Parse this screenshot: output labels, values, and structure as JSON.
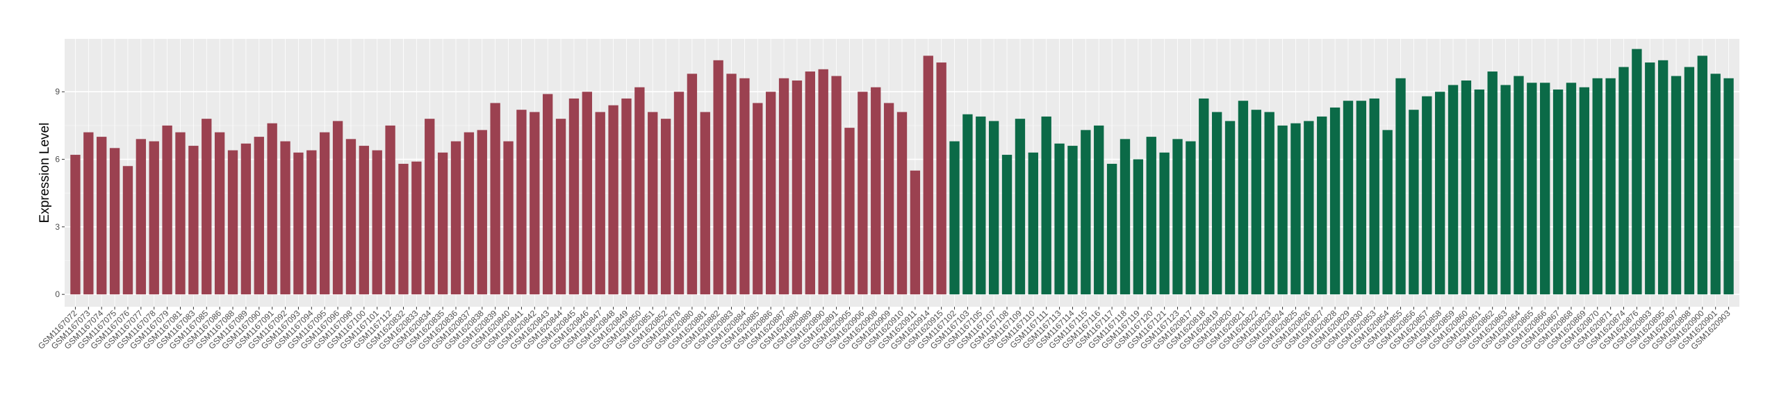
{
  "chart_data": {
    "type": "bar",
    "ylabel": "Expression Level",
    "categories": [
      "GSM1167072",
      "GSM1167073",
      "GSM1167074",
      "GSM1167075",
      "GSM1167076",
      "GSM1167077",
      "GSM1167078",
      "GSM1167079",
      "GSM1167081",
      "GSM1167083",
      "GSM1167085",
      "GSM1167086",
      "GSM1167088",
      "GSM1167089",
      "GSM1167090",
      "GSM1167091",
      "GSM1167092",
      "GSM1167093",
      "GSM1167094",
      "GSM1167095",
      "GSM1167096",
      "GSM1167098",
      "GSM1167100",
      "GSM1167101",
      "GSM1167112",
      "GSM1620832",
      "GSM1620833",
      "GSM1620834",
      "GSM1620835",
      "GSM1620836",
      "GSM1620837",
      "GSM1620838",
      "GSM1620839",
      "GSM1620840",
      "GSM1620841",
      "GSM1620842",
      "GSM1620843",
      "GSM1620844",
      "GSM1620845",
      "GSM1620846",
      "GSM1620847",
      "GSM1620848",
      "GSM1620849",
      "GSM1620850",
      "GSM1620851",
      "GSM1620852",
      "GSM1620878",
      "GSM1620880",
      "GSM1620881",
      "GSM1620882",
      "GSM1620883",
      "GSM1620884",
      "GSM1620885",
      "GSM1620886",
      "GSM1620887",
      "GSM1620888",
      "GSM1620889",
      "GSM1620890",
      "GSM1620891",
      "GSM1620905",
      "GSM1620906",
      "GSM1620908",
      "GSM1620909",
      "GSM1620910",
      "GSM1620911",
      "GSM1620914",
      "GSM1620915",
      "GSM1167102",
      "GSM1167103",
      "GSM1167105",
      "GSM1167107",
      "GSM1167108",
      "GSM1167109",
      "GSM1167110",
      "GSM1167111",
      "GSM1167113",
      "GSM1167114",
      "GSM1167115",
      "GSM1167116",
      "GSM1167117",
      "GSM1167118",
      "GSM1167119",
      "GSM1167120",
      "GSM1167121",
      "GSM1167123",
      "GSM1620817",
      "GSM1620818",
      "GSM1620819",
      "GSM1620820",
      "GSM1620821",
      "GSM1620822",
      "GSM1620823",
      "GSM1620824",
      "GSM1620825",
      "GSM1620826",
      "GSM1620827",
      "GSM1620828",
      "GSM1620829",
      "GSM1620830",
      "GSM1620853",
      "GSM1620854",
      "GSM1620855",
      "GSM1620856",
      "GSM1620857",
      "GSM1620858",
      "GSM1620859",
      "GSM1620860",
      "GSM1620861",
      "GSM1620862",
      "GSM1620863",
      "GSM1620864",
      "GSM1620865",
      "GSM1620866",
      "GSM1620867",
      "GSM1620868",
      "GSM1620869",
      "GSM1620870",
      "GSM1620871",
      "GSM1620874",
      "GSM1620876",
      "GSM1620893",
      "GSM1620895",
      "GSM1620897",
      "GSM1620898",
      "GSM1620900",
      "GSM1620901",
      "GSM1620903"
    ],
    "series": [
      {
        "color": "#9b4150",
        "values": [
          6.2,
          7.2,
          7.0,
          6.5,
          5.7,
          6.9,
          6.8,
          7.5,
          7.2,
          6.6,
          7.8,
          7.2,
          6.4,
          6.7,
          7.0,
          7.6,
          6.8,
          6.3,
          6.4,
          7.2,
          7.7,
          6.9,
          6.6,
          6.4,
          7.5,
          5.8,
          5.9,
          7.8,
          6.3,
          6.8,
          7.2,
          7.3,
          8.5,
          6.8,
          8.2,
          8.1,
          8.9,
          7.8,
          8.7,
          9.0,
          8.1,
          8.4,
          8.7,
          9.2,
          8.1,
          7.8,
          9.0,
          9.8,
          8.1,
          10.4,
          9.8,
          9.6,
          8.5,
          9.0,
          9.6,
          9.5,
          9.9,
          10.0,
          9.7,
          7.4,
          9.0,
          9.2,
          8.5,
          8.1,
          5.5,
          10.6,
          10.3,
          null,
          null,
          null,
          null,
          null,
          null,
          null,
          null,
          null,
          null,
          null,
          null,
          null,
          null,
          null,
          null,
          null,
          null,
          null,
          null,
          null,
          null,
          null,
          null,
          null,
          null,
          null,
          null,
          null,
          null,
          null,
          null,
          null,
          null,
          null,
          null,
          null,
          null,
          null,
          null,
          null,
          null,
          null,
          null,
          null,
          null,
          null,
          null,
          null,
          null,
          null,
          null,
          null,
          null,
          null,
          null,
          null,
          null,
          null,
          null
        ]
      },
      {
        "color": "#0b6a47",
        "values": [
          null,
          null,
          null,
          null,
          null,
          null,
          null,
          null,
          null,
          null,
          null,
          null,
          null,
          null,
          null,
          null,
          null,
          null,
          null,
          null,
          null,
          null,
          null,
          null,
          null,
          null,
          null,
          null,
          null,
          null,
          null,
          null,
          null,
          null,
          null,
          null,
          null,
          null,
          null,
          null,
          null,
          null,
          null,
          null,
          null,
          null,
          null,
          null,
          null,
          null,
          null,
          null,
          null,
          null,
          null,
          null,
          null,
          null,
          null,
          null,
          null,
          null,
          null,
          null,
          null,
          null,
          null,
          6.8,
          8.0,
          7.9,
          7.7,
          6.2,
          7.8,
          6.3,
          7.9,
          6.7,
          6.6,
          7.3,
          7.5,
          5.8,
          6.9,
          6.0,
          7.0,
          6.3,
          6.9,
          6.8,
          8.7,
          8.1,
          7.7,
          8.6,
          8.2,
          8.1,
          7.5,
          7.6,
          7.7,
          7.9,
          8.3,
          8.6,
          8.6,
          8.7,
          7.3,
          9.6,
          8.2,
          8.8,
          9.0,
          9.3,
          9.5,
          9.1,
          9.9,
          9.3,
          9.7,
          9.4,
          9.4,
          9.1,
          9.4,
          9.2,
          9.6,
          9.6,
          10.1,
          10.9,
          10.3,
          10.4,
          9.7,
          10.1,
          10.6,
          9.8,
          9.6
        ]
      }
    ],
    "ylim": [
      -0.55,
      11.35
    ],
    "yticks": [
      0,
      3,
      6,
      9
    ],
    "grid": true
  }
}
